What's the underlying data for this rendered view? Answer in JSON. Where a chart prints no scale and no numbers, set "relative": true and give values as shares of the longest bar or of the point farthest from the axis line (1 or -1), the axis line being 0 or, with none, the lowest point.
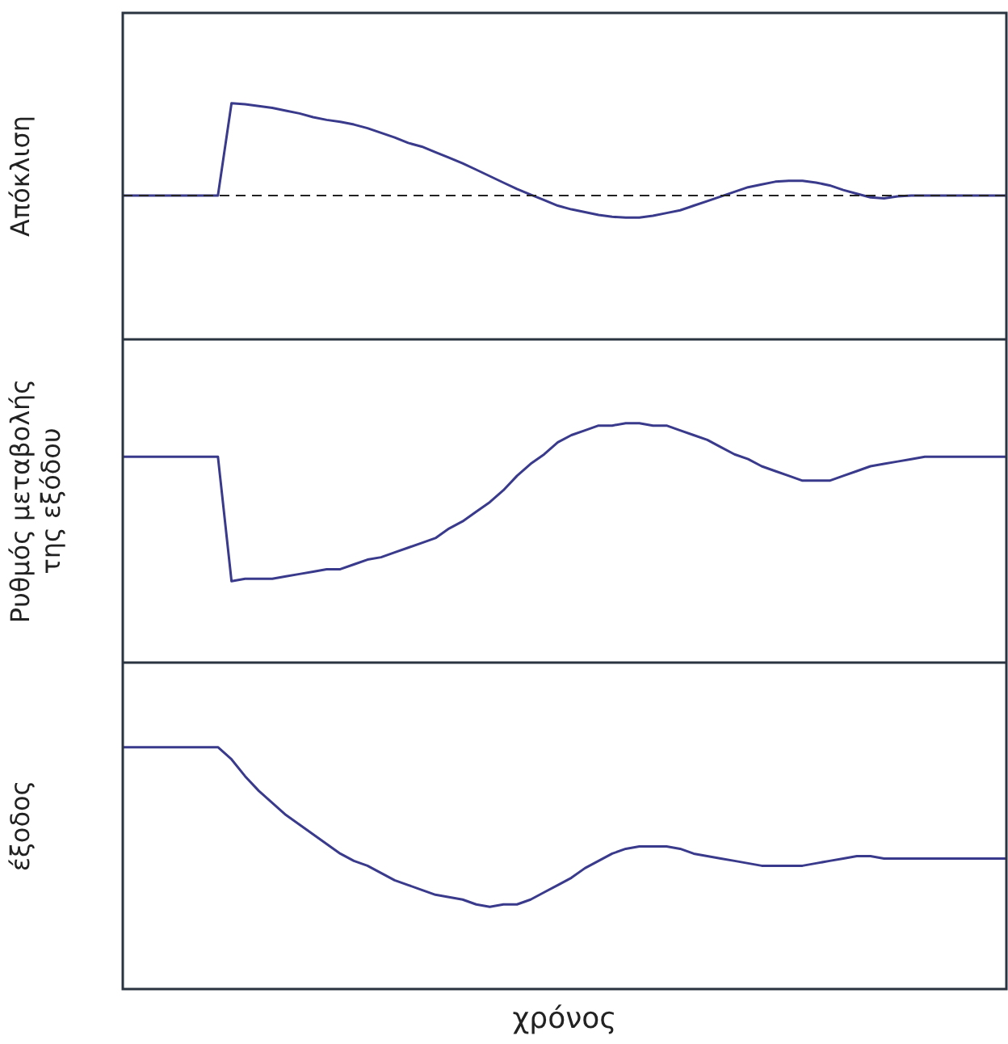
{
  "chart_data": [
    {
      "type": "line",
      "relative": true,
      "ylabel": "Απόκλιση",
      "legend": false,
      "grid": false,
      "tick_labels": false,
      "marker": "none",
      "line_style": "solid",
      "categories": [
        null,
        null,
        null,
        null,
        null,
        null,
        null,
        null,
        null,
        null,
        null,
        null,
        null,
        null,
        null,
        null,
        null,
        null,
        null,
        null,
        null,
        null,
        null,
        null,
        null,
        null,
        null,
        null,
        null,
        null,
        null,
        null,
        null,
        null,
        null,
        null,
        null,
        null,
        null,
        null,
        null,
        null,
        null,
        null,
        null,
        null,
        null,
        null,
        null,
        null,
        null,
        null,
        null,
        null,
        null,
        null,
        null,
        null,
        null,
        null,
        null,
        null,
        null,
        null,
        null,
        null
      ],
      "series": [
        {
          "color": "#3a3a8c",
          "values": [
            0,
            0,
            0,
            0,
            0,
            0,
            0,
            0,
            1.0,
            0.99,
            0.97,
            0.95,
            0.92,
            0.89,
            0.85,
            0.82,
            0.8,
            0.77,
            0.73,
            0.68,
            0.63,
            0.57,
            0.53,
            0.47,
            0.41,
            0.35,
            0.28,
            0.21,
            0.14,
            0.07,
            0.01,
            -0.05,
            -0.11,
            -0.15,
            -0.18,
            -0.21,
            -0.23,
            -0.24,
            -0.24,
            -0.22,
            -0.19,
            -0.16,
            -0.11,
            -0.06,
            -0.01,
            0.04,
            0.09,
            0.12,
            0.15,
            0.16,
            0.16,
            0.14,
            0.11,
            0.06,
            0.02,
            -0.02,
            -0.03,
            -0.01,
            0,
            0,
            0,
            0,
            0,
            0,
            0,
            0
          ]
        }
      ],
      "ref_lines": [
        {
          "axis": "y",
          "value": 0,
          "line_style": "dashed",
          "color": "#222222"
        }
      ]
    },
    {
      "type": "line",
      "relative": true,
      "ylabel": "Ρυθμός μεταβολής\nτης εξόδου",
      "legend": false,
      "grid": false,
      "tick_labels": false,
      "marker": "none",
      "line_style": "solid",
      "categories": [
        null,
        null,
        null,
        null,
        null,
        null,
        null,
        null,
        null,
        null,
        null,
        null,
        null,
        null,
        null,
        null,
        null,
        null,
        null,
        null,
        null,
        null,
        null,
        null,
        null,
        null,
        null,
        null,
        null,
        null,
        null,
        null,
        null,
        null,
        null,
        null,
        null,
        null,
        null,
        null,
        null,
        null,
        null,
        null,
        null,
        null,
        null,
        null,
        null,
        null,
        null,
        null,
        null,
        null,
        null,
        null,
        null,
        null,
        null,
        null,
        null,
        null,
        null,
        null,
        null,
        null
      ],
      "series": [
        {
          "color": "#3a3a8c",
          "values": [
            0.86,
            0.86,
            0.86,
            0.86,
            0.86,
            0.86,
            0.86,
            0.86,
            0.34,
            0.35,
            0.35,
            0.35,
            0.36,
            0.37,
            0.38,
            0.39,
            0.39,
            0.41,
            0.43,
            0.44,
            0.46,
            0.48,
            0.5,
            0.52,
            0.56,
            0.59,
            0.63,
            0.67,
            0.72,
            0.78,
            0.83,
            0.87,
            0.92,
            0.95,
            0.97,
            0.99,
            0.99,
            1.0,
            1.0,
            0.99,
            0.99,
            0.97,
            0.95,
            0.93,
            0.9,
            0.87,
            0.85,
            0.82,
            0.8,
            0.78,
            0.76,
            0.76,
            0.76,
            0.78,
            0.8,
            0.82,
            0.83,
            0.84,
            0.85,
            0.86,
            0.86,
            0.86,
            0.86,
            0.86,
            0.86,
            0.86
          ]
        }
      ]
    },
    {
      "type": "line",
      "relative": true,
      "ylabel": "έξοδος",
      "xlabel": "χρόνος",
      "legend": false,
      "grid": false,
      "tick_labels": false,
      "marker": "none",
      "line_style": "solid",
      "categories": [
        null,
        null,
        null,
        null,
        null,
        null,
        null,
        null,
        null,
        null,
        null,
        null,
        null,
        null,
        null,
        null,
        null,
        null,
        null,
        null,
        null,
        null,
        null,
        null,
        null,
        null,
        null,
        null,
        null,
        null,
        null,
        null,
        null,
        null,
        null,
        null,
        null,
        null,
        null,
        null,
        null,
        null,
        null,
        null,
        null,
        null,
        null,
        null,
        null,
        null,
        null,
        null,
        null,
        null,
        null,
        null,
        null,
        null,
        null,
        null,
        null,
        null,
        null,
        null,
        null,
        null
      ],
      "series": [
        {
          "color": "#3a3a8c",
          "values": [
            1.0,
            1.0,
            1.0,
            1.0,
            1.0,
            1.0,
            1.0,
            1.0,
            0.95,
            0.88,
            0.82,
            0.77,
            0.72,
            0.68,
            0.64,
            0.6,
            0.56,
            0.53,
            0.51,
            0.48,
            0.45,
            0.43,
            0.41,
            0.39,
            0.38,
            0.37,
            0.35,
            0.34,
            0.35,
            0.35,
            0.37,
            0.4,
            0.43,
            0.46,
            0.5,
            0.53,
            0.56,
            0.58,
            0.59,
            0.59,
            0.59,
            0.58,
            0.56,
            0.55,
            0.54,
            0.53,
            0.52,
            0.51,
            0.51,
            0.51,
            0.51,
            0.52,
            0.53,
            0.54,
            0.55,
            0.55,
            0.54,
            0.54,
            0.54,
            0.54,
            0.54,
            0.54,
            0.54,
            0.54,
            0.54,
            0.54
          ]
        }
      ]
    }
  ]
}
